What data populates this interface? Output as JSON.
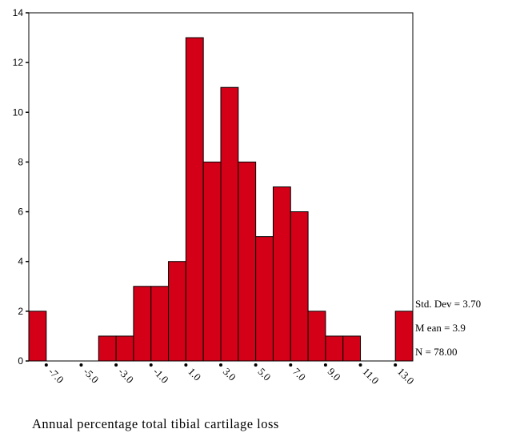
{
  "chart_data": {
    "type": "bar",
    "subtype": "histogram",
    "bin_width": 1,
    "x_range": [
      -8.0,
      14.0
    ],
    "bins": [
      {
        "center": -7.5,
        "count": 2
      },
      {
        "center": -6.5,
        "count": 0
      },
      {
        "center": -5.5,
        "count": 0
      },
      {
        "center": -4.5,
        "count": 0
      },
      {
        "center": -3.5,
        "count": 1
      },
      {
        "center": -2.5,
        "count": 1
      },
      {
        "center": -1.5,
        "count": 3
      },
      {
        "center": -0.5,
        "count": 3
      },
      {
        "center": 0.5,
        "count": 4
      },
      {
        "center": 1.5,
        "count": 13
      },
      {
        "center": 2.5,
        "count": 8
      },
      {
        "center": 3.5,
        "count": 11
      },
      {
        "center": 4.5,
        "count": 8
      },
      {
        "center": 5.5,
        "count": 5
      },
      {
        "center": 6.5,
        "count": 7
      },
      {
        "center": 7.5,
        "count": 6
      },
      {
        "center": 8.5,
        "count": 2
      },
      {
        "center": 9.5,
        "count": 1
      },
      {
        "center": 10.5,
        "count": 1
      },
      {
        "center": 11.5,
        "count": 0
      },
      {
        "center": 12.5,
        "count": 0
      },
      {
        "center": 13.5,
        "count": 2
      }
    ],
    "x_ticks": [
      "-7.0",
      "-5.0",
      "-3.0",
      "-1.0",
      "1.0",
      "3.0",
      "5.0",
      "7.0",
      "9.0",
      "11.0",
      "13.0"
    ],
    "y_ticks": [
      "0",
      "2",
      "4",
      "6",
      "8",
      "10",
      "12",
      "14"
    ],
    "ylim": [
      0,
      14
    ],
    "xlabel": "Annual percentage total tibial cartilage loss",
    "ylabel": "",
    "title": "",
    "grid": false,
    "bar_color": "#d40018",
    "stats": {
      "std_dev": "Std. Dev = 3.70",
      "mean": "M ean = 3.9",
      "n": "N = 78.00"
    }
  }
}
